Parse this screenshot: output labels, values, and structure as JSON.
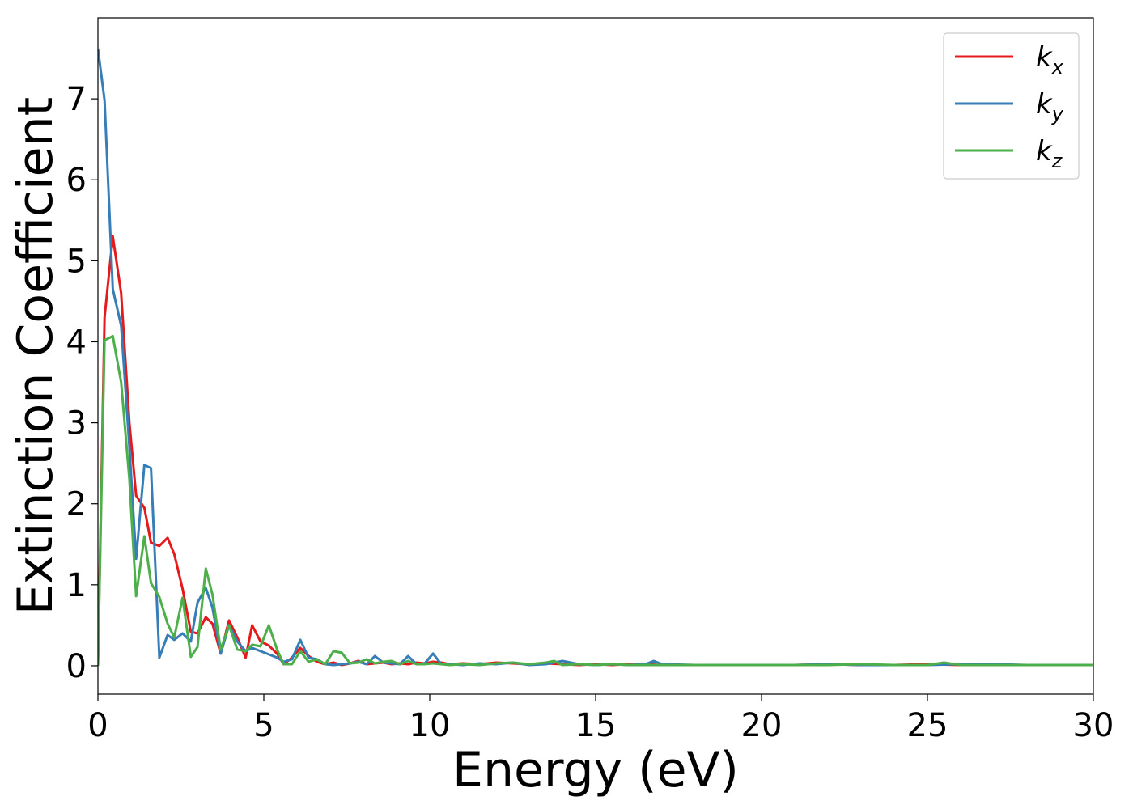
{
  "chart_data": {
    "type": "line",
    "title": "",
    "xlabel": "Energy (eV)",
    "ylabel": "Extinction Coefficient",
    "xlim": [
      0,
      30
    ],
    "ylim": [
      -0.35,
      8.0
    ],
    "xticks": [
      0,
      5,
      10,
      15,
      20,
      25,
      30
    ],
    "yticks": [
      0,
      1,
      2,
      3,
      4,
      5,
      6,
      7
    ],
    "grid": false,
    "legend_position": "top-right",
    "series": [
      {
        "name": "k_x",
        "label_base": "k",
        "label_sub": "x",
        "color": "#e41a1c",
        "x": [
          0,
          0.2,
          0.45,
          0.7,
          0.95,
          1.15,
          1.4,
          1.6,
          1.85,
          2.1,
          2.3,
          2.55,
          2.8,
          3.0,
          3.25,
          3.45,
          3.7,
          3.95,
          4.2,
          4.45,
          4.65,
          4.9,
          5.15,
          5.4,
          5.6,
          5.85,
          6.1,
          6.35,
          6.6,
          6.85,
          7.1,
          7.35,
          7.6,
          7.85,
          8.1,
          8.35,
          8.6,
          8.85,
          9.1,
          9.35,
          9.6,
          9.85,
          10.1,
          10.35,
          10.6,
          11.0,
          11.5,
          12.0,
          12.5,
          13.0,
          13.5,
          14.0,
          14.5,
          15.0,
          15.5,
          16.0,
          16.5,
          17.0,
          18.0,
          19.0,
          20.0,
          21.0,
          22.0,
          23.0,
          24.0,
          25.0,
          26.0,
          27.0,
          28.0,
          29.0,
          30.0
        ],
        "y": [
          0,
          4.3,
          5.3,
          4.6,
          3.0,
          2.1,
          1.95,
          1.52,
          1.48,
          1.58,
          1.38,
          0.95,
          0.42,
          0.4,
          0.6,
          0.52,
          0.15,
          0.56,
          0.35,
          0.1,
          0.5,
          0.3,
          0.25,
          0.15,
          0.02,
          0.1,
          0.22,
          0.12,
          0.05,
          0.02,
          0.04,
          0.01,
          0.03,
          0.06,
          0.02,
          0.03,
          0.04,
          0.02,
          0.03,
          0.02,
          0.04,
          0.03,
          0.05,
          0.04,
          0.02,
          0.03,
          0.02,
          0.04,
          0.03,
          0.02,
          0.03,
          0.02,
          0.01,
          0.02,
          0.01,
          0.02,
          0.02,
          0.01,
          0.01,
          0.01,
          0.01,
          0.01,
          0.02,
          0.01,
          0.01,
          0.02,
          0.01,
          0.01,
          0.01,
          0.01,
          0.01
        ]
      },
      {
        "name": "k_y",
        "label_base": "k",
        "label_sub": "y",
        "color": "#377eb8",
        "x": [
          0,
          0.2,
          0.45,
          0.7,
          0.95,
          1.15,
          1.4,
          1.6,
          1.85,
          2.1,
          2.3,
          2.55,
          2.8,
          3.0,
          3.25,
          3.45,
          3.7,
          3.95,
          4.2,
          4.45,
          4.65,
          4.9,
          5.15,
          5.4,
          5.6,
          5.85,
          6.1,
          6.35,
          6.6,
          6.85,
          7.1,
          7.35,
          7.6,
          7.85,
          8.1,
          8.35,
          8.6,
          8.85,
          9.1,
          9.35,
          9.6,
          9.85,
          10.1,
          10.35,
          10.6,
          11.0,
          11.5,
          12.0,
          12.5,
          13.0,
          13.5,
          14.0,
          14.5,
          15.0,
          15.5,
          16.0,
          16.5,
          16.75,
          17.0,
          18.0,
          19.0,
          20.0,
          21.0,
          22.0,
          23.0,
          24.0,
          25.0,
          26.0,
          27.0,
          28.0,
          29.0,
          30.0
        ],
        "y": [
          7.62,
          6.98,
          4.65,
          4.2,
          2.7,
          1.32,
          2.48,
          2.44,
          0.1,
          0.38,
          0.32,
          0.4,
          0.3,
          0.78,
          0.96,
          0.72,
          0.15,
          0.5,
          0.3,
          0.18,
          0.22,
          0.18,
          0.14,
          0.1,
          0.05,
          0.08,
          0.32,
          0.1,
          0.08,
          0.02,
          0.01,
          0.02,
          0.03,
          0.05,
          0.02,
          0.12,
          0.04,
          0.03,
          0.02,
          0.12,
          0.02,
          0.03,
          0.15,
          0.02,
          0.02,
          0.01,
          0.03,
          0.02,
          0.04,
          0.01,
          0.02,
          0.06,
          0.02,
          0.01,
          0.02,
          0.01,
          0.02,
          0.06,
          0.02,
          0.01,
          0.01,
          0.01,
          0.01,
          0.02,
          0.01,
          0.01,
          0.01,
          0.02,
          0.02,
          0.01,
          0.01,
          0.01
        ]
      },
      {
        "name": "k_z",
        "label_base": "k",
        "label_sub": "z",
        "color": "#4daf4a",
        "x": [
          0,
          0.2,
          0.45,
          0.7,
          0.95,
          1.15,
          1.4,
          1.6,
          1.85,
          2.1,
          2.3,
          2.55,
          2.8,
          3.0,
          3.25,
          3.45,
          3.7,
          3.95,
          4.2,
          4.45,
          4.65,
          4.9,
          5.15,
          5.4,
          5.6,
          5.85,
          6.1,
          6.35,
          6.6,
          6.85,
          7.1,
          7.35,
          7.6,
          7.85,
          8.1,
          8.35,
          8.6,
          8.85,
          9.1,
          9.35,
          9.6,
          9.85,
          10.1,
          10.35,
          10.6,
          11.0,
          11.5,
          12.0,
          12.5,
          13.0,
          13.5,
          13.75,
          14.0,
          14.5,
          15.0,
          15.5,
          16.0,
          17.0,
          18.0,
          19.0,
          20.0,
          21.0,
          22.0,
          23.0,
          24.0,
          25.0,
          25.5,
          26.0,
          27.0,
          28.0,
          29.0,
          30.0
        ],
        "y": [
          0,
          4.02,
          4.07,
          3.5,
          2.3,
          0.86,
          1.6,
          1.02,
          0.85,
          0.52,
          0.35,
          0.84,
          0.11,
          0.23,
          1.2,
          0.88,
          0.2,
          0.5,
          0.2,
          0.18,
          0.26,
          0.24,
          0.5,
          0.2,
          0.02,
          0.02,
          0.18,
          0.05,
          0.08,
          0.02,
          0.18,
          0.16,
          0.03,
          0.04,
          0.08,
          0.03,
          0.05,
          0.06,
          0.02,
          0.06,
          0.02,
          0.02,
          0.03,
          0.02,
          0.01,
          0.02,
          0.01,
          0.03,
          0.04,
          0.02,
          0.04,
          0.06,
          0.01,
          0.02,
          0.01,
          0.02,
          0.01,
          0.01,
          0.01,
          0.01,
          0.01,
          0.01,
          0.01,
          0.02,
          0.01,
          0.01,
          0.04,
          0.01,
          0.01,
          0.01,
          0.01,
          0.01
        ]
      }
    ]
  }
}
